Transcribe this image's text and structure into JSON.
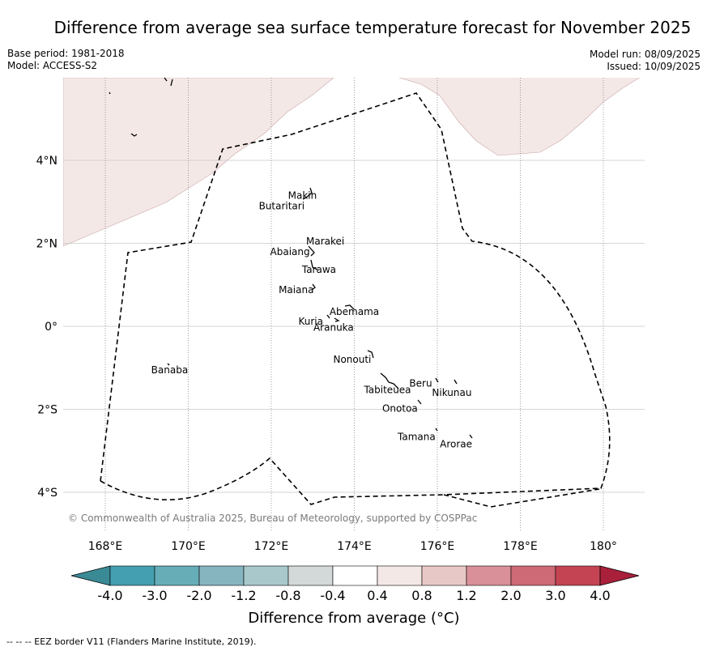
{
  "title": "Difference from average sea surface temperature forecast for November 2025",
  "base_period": "Base period: 1981-2018",
  "model": "Model: ACCESS-S2",
  "model_run": "Model run: 08/09/2025",
  "issued": "Issued: 10/09/2025",
  "copyright": "© Commonwealth of Australia 2025, Bureau of Meteorology, supported by COSPPac",
  "colorbar_label": "Difference from average (°C)",
  "footer": "-- -- -- EEZ border V11 (Flanders Marine Institute, 2019).",
  "map": {
    "lon_ticks": [
      {
        "lon": 168,
        "label": "168°E"
      },
      {
        "lon": 170,
        "label": "170°E"
      },
      {
        "lon": 172,
        "label": "172°E"
      },
      {
        "lon": 174,
        "label": "174°E"
      },
      {
        "lon": 176,
        "label": "176°E"
      },
      {
        "lon": 178,
        "label": "178°E"
      },
      {
        "lon": 180,
        "label": "180°"
      }
    ],
    "lat_ticks": [
      {
        "lat": 4,
        "label": "4°N"
      },
      {
        "lat": 2,
        "label": "2°N"
      },
      {
        "lat": 0,
        "label": "0°"
      },
      {
        "lat": -2,
        "label": "2°S"
      },
      {
        "lat": -4,
        "label": "4°S"
      }
    ],
    "islands": [
      {
        "name": "Makin",
        "lon": 172.75,
        "lat": 3.15
      },
      {
        "name": "Butaritari",
        "lon": 172.25,
        "lat": 2.9
      },
      {
        "name": "Marakei",
        "lon": 173.3,
        "lat": 2.05
      },
      {
        "name": "Abaiang",
        "lon": 172.45,
        "lat": 1.8
      },
      {
        "name": "Tarawa",
        "lon": 173.15,
        "lat": 1.37
      },
      {
        "name": "Maiana",
        "lon": 172.6,
        "lat": 0.88
      },
      {
        "name": "Abemama",
        "lon": 174.0,
        "lat": 0.35
      },
      {
        "name": "Kuria",
        "lon": 172.95,
        "lat": 0.12
      },
      {
        "name": "Aranuka",
        "lon": 173.5,
        "lat": -0.03
      },
      {
        "name": "Banaba",
        "lon": 169.55,
        "lat": -1.05
      },
      {
        "name": "Nonouti",
        "lon": 173.95,
        "lat": -0.8
      },
      {
        "name": "Tabiteuea",
        "lon": 174.8,
        "lat": -1.53
      },
      {
        "name": "Beru",
        "lon": 175.6,
        "lat": -1.38
      },
      {
        "name": "Nikunau",
        "lon": 176.35,
        "lat": -1.6
      },
      {
        "name": "Onotoa",
        "lon": 175.1,
        "lat": -1.98
      },
      {
        "name": "Tamana",
        "lon": 175.5,
        "lat": -2.66
      },
      {
        "name": "Arorae",
        "lon": 176.45,
        "lat": -2.84
      }
    ],
    "anomaly_fill": {
      "range": "0.4 to 0.8",
      "color": "#f4e8e6"
    }
  },
  "colorbar": {
    "boundaries": [
      "-4.0",
      "-3.0",
      "-2.0",
      "-1.2",
      "-0.8",
      "-0.4",
      "0.4",
      "0.8",
      "1.2",
      "2.0",
      "3.0",
      "4.0"
    ],
    "colors": [
      "#44a0b0",
      "#66adb8",
      "#86b5c0",
      "#a8c8cc",
      "#d3d8d8",
      "#ffffff",
      "#f4e8e6",
      "#e8c8c6",
      "#d99098",
      "#cd6a75",
      "#c44454"
    ],
    "extend_low_color": "#3a8a96",
    "extend_high_color": "#a8203a"
  }
}
